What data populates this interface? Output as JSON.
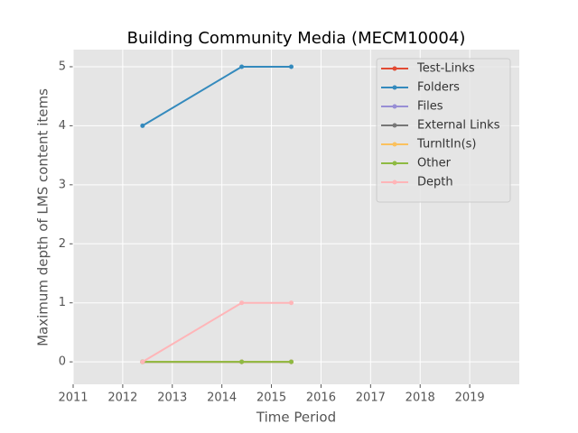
{
  "chart_data": {
    "type": "line",
    "title": "Building Community Media (MECM10004)",
    "x_label": "Time Period",
    "y_label": "Maximum depth of LMS content items",
    "x": [
      2012.4,
      2014.4,
      2015.4
    ],
    "series": [
      {
        "name": "Test-Links",
        "color": "#E24A33",
        "values": [
          0,
          0,
          0
        ]
      },
      {
        "name": "Folders",
        "color": "#348ABD",
        "values": [
          4,
          5,
          5
        ]
      },
      {
        "name": "Files",
        "color": "#988ED5",
        "values": [
          0,
          0,
          0
        ]
      },
      {
        "name": "External Links",
        "color": "#777777",
        "values": [
          0,
          0,
          0
        ]
      },
      {
        "name": "TurnItIn(s)",
        "color": "#FBC15E",
        "values": [
          0,
          0,
          0
        ]
      },
      {
        "name": "Other",
        "color": "#8EBA42",
        "values": [
          0,
          0,
          0
        ]
      },
      {
        "name": "Depth",
        "color": "#FFB5B8",
        "values": [
          0,
          1,
          1
        ]
      }
    ],
    "xlim": [
      2011,
      2020
    ],
    "ylim": [
      -0.38,
      5.29
    ],
    "xticks": [
      2011,
      2012,
      2013,
      2014,
      2015,
      2016,
      2017,
      2018,
      2019
    ],
    "yticks": [
      0,
      1,
      2,
      3,
      4,
      5
    ],
    "grid": true,
    "legend": "upper right"
  }
}
